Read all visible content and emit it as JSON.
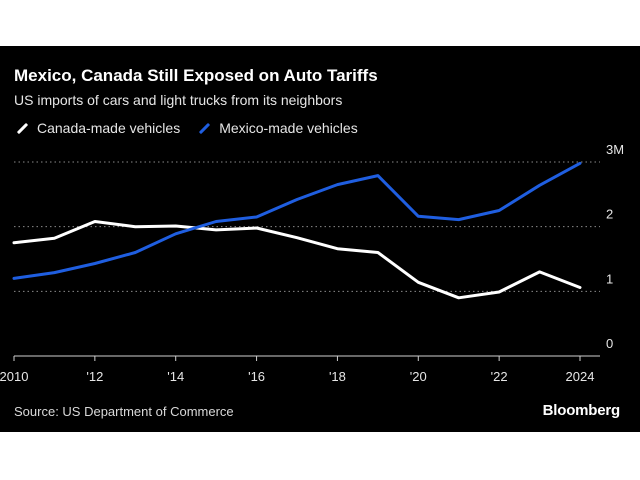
{
  "chart_data": {
    "type": "line",
    "title": "Mexico, Canada Still Exposed on Auto Tariffs",
    "subtitle": "US imports of cars and light trucks from its neighbors",
    "x": [
      2010,
      2011,
      2012,
      2013,
      2014,
      2015,
      2016,
      2017,
      2018,
      2019,
      2020,
      2021,
      2022,
      2023,
      2024
    ],
    "xlim": [
      2010,
      2024
    ],
    "x_tick_values": [
      2010,
      2012,
      2014,
      2016,
      2018,
      2020,
      2022,
      2024
    ],
    "x_tick_labels": [
      "2010",
      "'12",
      "'14",
      "'16",
      "'18",
      "'20",
      "'22",
      "2024"
    ],
    "ylim": [
      0,
      3
    ],
    "y_tick_values": [
      3,
      2,
      1,
      0
    ],
    "y_tick_labels": [
      "3M",
      "2",
      "1",
      "0"
    ],
    "grid": "horizontal dotted",
    "legend_position": "top-left",
    "series": [
      {
        "name": "Canada-made vehicles",
        "color": "#ffffff",
        "values": [
          1.75,
          1.82,
          2.08,
          2.0,
          2.01,
          1.95,
          1.98,
          1.83,
          1.66,
          1.6,
          1.14,
          0.9,
          0.99,
          1.3,
          1.06
        ]
      },
      {
        "name": "Mexico-made vehicles",
        "color": "#1f5ee0",
        "values": [
          1.2,
          1.29,
          1.43,
          1.6,
          1.89,
          2.08,
          2.15,
          2.42,
          2.65,
          2.79,
          2.16,
          2.11,
          2.25,
          2.64,
          2.98
        ]
      }
    ],
    "source": "Source: US Department of Commerce",
    "brand": "Bloomberg"
  }
}
